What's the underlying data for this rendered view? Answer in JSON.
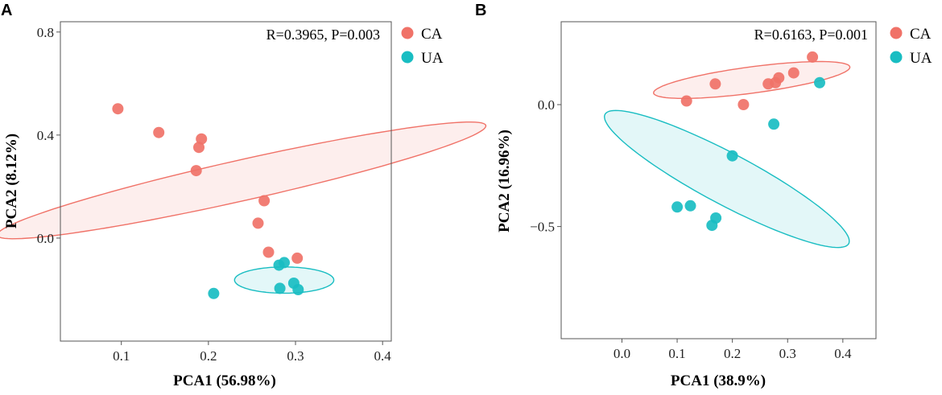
{
  "colors": {
    "CA": "#F07268",
    "UA": "#19BDC2"
  },
  "legend": [
    {
      "key": "CA",
      "label": "CA"
    },
    {
      "key": "UA",
      "label": "UA"
    }
  ],
  "chart_data": [
    {
      "type": "scatter",
      "panel": "A",
      "xlabel": "PCA1 (56.98%)",
      "ylabel": "PCA2 (8.12%)",
      "annotation": "R=0.3965, P=0.003",
      "xlim": [
        0.03,
        0.41
      ],
      "ylim": [
        -0.4,
        0.84
      ],
      "xticks": [
        0.1,
        0.2,
        0.3,
        0.4
      ],
      "xtick_labels": [
        "0.1",
        "0.2",
        "0.3",
        "0.4"
      ],
      "yticks": [
        0.0,
        0.4,
        0.8
      ],
      "ytick_labels": [
        "0.0",
        "0.4",
        "0.8"
      ],
      "series": [
        {
          "name": "CA",
          "x": [
            0.096,
            0.143,
            0.192,
            0.189,
            0.186,
            0.264,
            0.257,
            0.269,
            0.302
          ],
          "y": [
            0.502,
            0.41,
            0.385,
            0.352,
            0.262,
            0.145,
            0.058,
            -0.055,
            -0.078
          ]
        },
        {
          "name": "UA",
          "x": [
            0.206,
            0.281,
            0.287,
            0.282,
            0.298,
            0.303
          ],
          "y": [
            -0.215,
            -0.105,
            -0.095,
            -0.195,
            -0.175,
            -0.2
          ]
        }
      ],
      "ellipses": [
        {
          "series": "CA",
          "cx": 0.238,
          "cy": 0.224,
          "rx_dist": 0.355,
          "ry_dist": 0.064,
          "angle_deg": 38.5
        },
        {
          "series": "UA",
          "cx": 0.287,
          "cy": -0.163,
          "rx_dist": 0.057,
          "ry_dist": 0.051,
          "angle_deg": 0
        }
      ]
    },
    {
      "type": "scatter",
      "panel": "B",
      "xlabel": "PCA1 (38.9%)",
      "ylabel": "PCA2 (16.96%)",
      "annotation": "R=0.6163, P=0.001",
      "xlim": [
        -0.11,
        0.46
      ],
      "ylim": [
        -0.96,
        0.34
      ],
      "xticks": [
        0.0,
        0.1,
        0.2,
        0.3,
        0.4
      ],
      "xtick_labels": [
        "0.0",
        "0.1",
        "0.2",
        "0.3",
        "0.4"
      ],
      "yticks": [
        0.0,
        -0.5
      ],
      "ytick_labels": [
        "0.0",
        "−0.5"
      ],
      "series": [
        {
          "name": "CA",
          "x": [
            0.117,
            0.169,
            0.265,
            0.278,
            0.284,
            0.311,
            0.345,
            0.22
          ],
          "y": [
            0.015,
            0.085,
            0.085,
            0.09,
            0.11,
            0.13,
            0.195,
            0.0
          ]
        },
        {
          "name": "UA",
          "x": [
            0.358,
            0.275,
            0.2,
            0.1,
            0.124,
            0.17,
            0.163
          ],
          "y": [
            0.09,
            -0.08,
            -0.21,
            -0.42,
            -0.415,
            -0.465,
            -0.495
          ]
        }
      ],
      "ellipses": [
        {
          "series": "CA",
          "cx": 0.235,
          "cy": 0.101,
          "rx_dist": 0.186,
          "ry_dist": 0.052,
          "angle_deg": 17.9
        },
        {
          "series": "UA",
          "cx": 0.19,
          "cy": -0.305,
          "rx_dist": 0.35,
          "ry_dist": 0.075,
          "angle_deg": -52.4
        }
      ]
    }
  ]
}
